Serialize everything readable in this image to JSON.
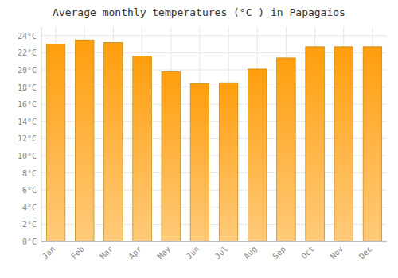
{
  "chart_data": {
    "type": "bar",
    "title": "Average monthly temperatures (°C ) in Papagaios",
    "categories": [
      "Jan",
      "Feb",
      "Mar",
      "Apr",
      "May",
      "Jun",
      "Jul",
      "Aug",
      "Sep",
      "Oct",
      "Nov",
      "Dec"
    ],
    "values": [
      23.0,
      23.5,
      23.2,
      21.6,
      19.8,
      18.4,
      18.5,
      20.1,
      21.4,
      22.7,
      22.7,
      22.7
    ],
    "color": "#ff9e0d",
    "ylim": [
      0,
      25
    ],
    "yticks": [
      {
        "value": 0,
        "label": "0°C"
      },
      {
        "value": 2,
        "label": "2°C"
      },
      {
        "value": 4,
        "label": "4°C"
      },
      {
        "value": 6,
        "label": "6°C"
      },
      {
        "value": 8,
        "label": "8°C"
      },
      {
        "value": 10,
        "label": "10°C"
      },
      {
        "value": 12,
        "label": "12°C"
      },
      {
        "value": 14,
        "label": "14°C"
      },
      {
        "value": 16,
        "label": "16°C"
      },
      {
        "value": 18,
        "label": "18°C"
      },
      {
        "value": 20,
        "label": "20°C"
      },
      {
        "value": 22,
        "label": "22°C"
      },
      {
        "value": 24,
        "label": "24°C"
      }
    ],
    "grid": true
  }
}
